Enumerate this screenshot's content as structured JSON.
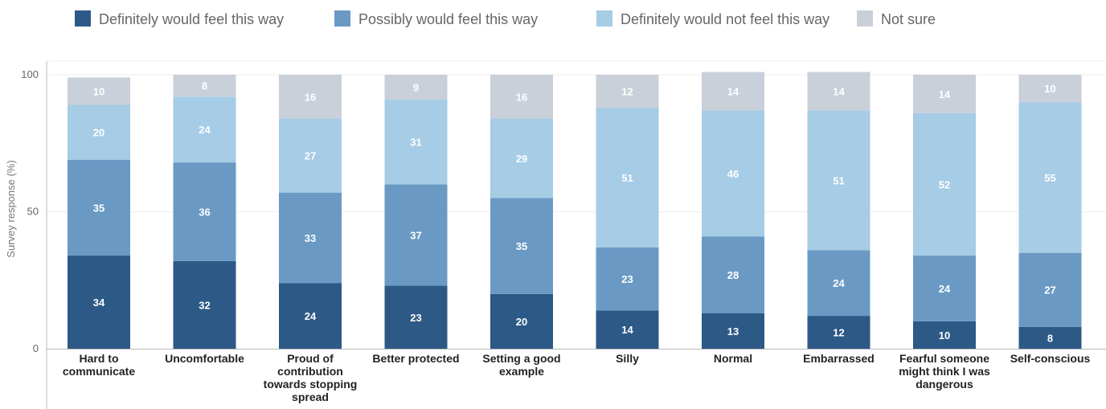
{
  "colors": {
    "definitely": "#2d5986",
    "possibly": "#6a9ac4",
    "definitely_not": "#a6cce6",
    "not_sure": "#c9d0da",
    "gridline": "#eeeeee",
    "axis": "#bbbbbb"
  },
  "chart_data": {
    "type": "bar",
    "stacked": true,
    "title": "",
    "xlabel": "",
    "ylabel": "Survey response (%)",
    "ylim": [
      0,
      100
    ],
    "yticks": [
      0,
      50,
      100
    ],
    "legend_position": "top",
    "categories": [
      [
        "Hard to",
        "communicate"
      ],
      [
        "Uncomfortable"
      ],
      [
        "Proud of",
        "contribution",
        "towards stopping",
        "spread"
      ],
      [
        "Better protected"
      ],
      [
        "Setting a good",
        "example"
      ],
      [
        "Silly"
      ],
      [
        "Normal"
      ],
      [
        "Embarrassed"
      ],
      [
        "Fearful someone",
        "might think I was",
        "dangerous"
      ],
      [
        "Self-conscious"
      ]
    ],
    "series": [
      {
        "name": "Definitely would feel this way",
        "color": "#2d5986",
        "values": [
          34,
          32,
          24,
          23,
          20,
          14,
          13,
          12,
          10,
          8
        ]
      },
      {
        "name": "Possibly would feel this way",
        "color": "#6a9ac4",
        "values": [
          35,
          36,
          33,
          37,
          35,
          23,
          28,
          24,
          24,
          27
        ]
      },
      {
        "name": "Definitely would not feel this way",
        "color": "#a6cce6",
        "values": [
          20,
          24,
          27,
          31,
          29,
          51,
          46,
          51,
          52,
          55
        ]
      },
      {
        "name": "Not sure",
        "color": "#c9d0da",
        "values": [
          10,
          8,
          16,
          9,
          16,
          12,
          14,
          14,
          14,
          10
        ]
      }
    ]
  }
}
